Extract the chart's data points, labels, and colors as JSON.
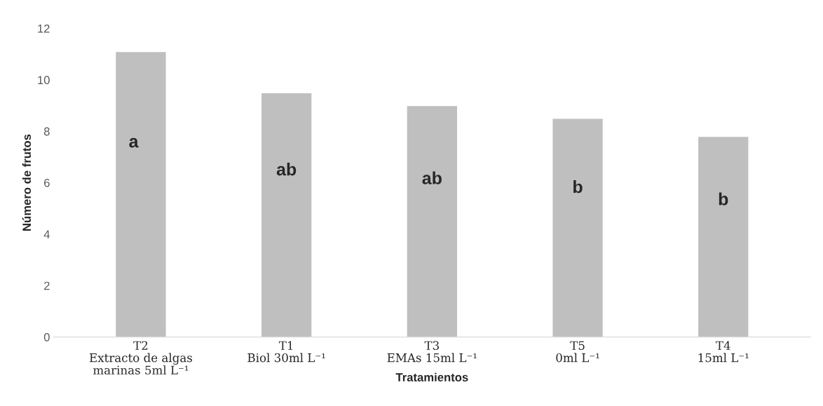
{
  "chart_data": {
    "type": "bar",
    "xlabel": "Tratamientos",
    "ylabel": "Número de frutos",
    "categories": [
      "T2\nExtracto de algas\nmarinas 5ml L⁻¹",
      "T1\nBiol 30ml L⁻¹",
      "T3\nEMAs 15ml L⁻¹",
      "T5\n0ml L⁻¹",
      "T4\n15ml L⁻¹"
    ],
    "values": [
      11.1,
      9.5,
      9.0,
      8.5,
      7.8
    ],
    "color": "#bfbfbf",
    "ylim": [
      0,
      12
    ],
    "yticks": [
      0,
      2,
      4,
      6,
      8,
      10,
      12
    ],
    "grid": false,
    "legend": false,
    "annotations": [
      "a",
      "ab",
      "ab",
      "b",
      "b"
    ]
  }
}
